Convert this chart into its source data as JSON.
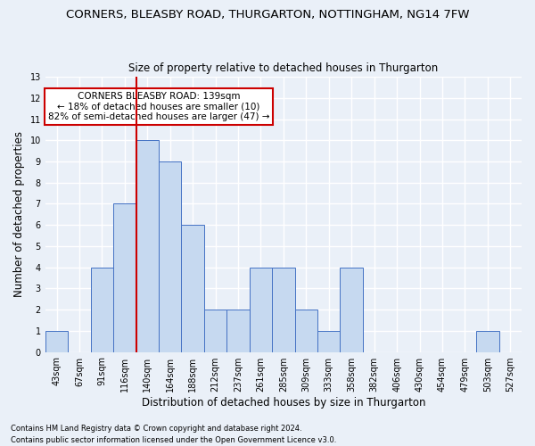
{
  "title": "CORNERS, BLEASBY ROAD, THURGARTON, NOTTINGHAM, NG14 7FW",
  "subtitle": "Size of property relative to detached houses in Thurgarton",
  "xlabel": "Distribution of detached houses by size in Thurgarton",
  "ylabel": "Number of detached properties",
  "bar_labels": [
    "43sqm",
    "67sqm",
    "91sqm",
    "116sqm",
    "140sqm",
    "164sqm",
    "188sqm",
    "212sqm",
    "237sqm",
    "261sqm",
    "285sqm",
    "309sqm",
    "333sqm",
    "358sqm",
    "382sqm",
    "406sqm",
    "430sqm",
    "454sqm",
    "479sqm",
    "503sqm",
    "527sqm"
  ],
  "bar_values": [
    1,
    0,
    4,
    7,
    10,
    9,
    6,
    2,
    2,
    4,
    4,
    2,
    1,
    4,
    0,
    0,
    0,
    0,
    0,
    1,
    0
  ],
  "bar_color": "#c6d9f0",
  "bar_edge_color": "#4472c4",
  "red_line_index": 4,
  "annotation_text": "CORNERS BLEASBY ROAD: 139sqm\n← 18% of detached houses are smaller (10)\n82% of semi-detached houses are larger (47) →",
  "annotation_box_color": "#ffffff",
  "annotation_border_color": "#cc0000",
  "ylim": [
    0,
    13
  ],
  "yticks": [
    0,
    1,
    2,
    3,
    4,
    5,
    6,
    7,
    8,
    9,
    10,
    11,
    12,
    13
  ],
  "footer_line1": "Contains HM Land Registry data © Crown copyright and database right 2024.",
  "footer_line2": "Contains public sector information licensed under the Open Government Licence v3.0.",
  "bg_color": "#eaf0f8",
  "grid_color": "#ffffff",
  "title_fontsize": 9.5,
  "subtitle_fontsize": 8.5,
  "tick_fontsize": 7,
  "ylabel_fontsize": 8.5,
  "xlabel_fontsize": 8.5,
  "footer_fontsize": 6,
  "annotation_fontsize": 7.5
}
